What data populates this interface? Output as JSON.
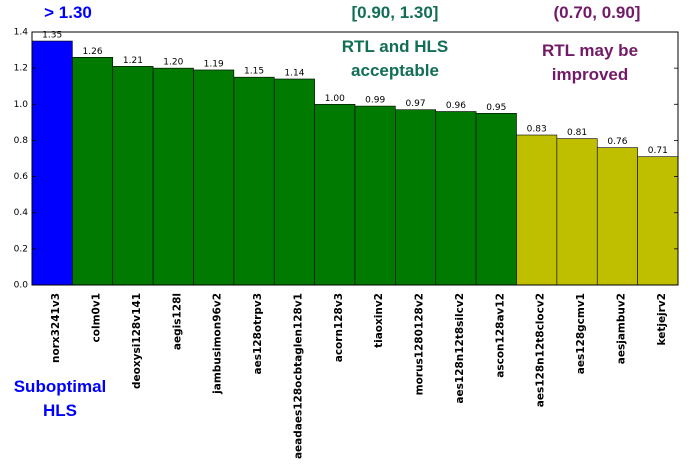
{
  "chart_data": {
    "type": "bar",
    "categories": [
      "norx3241v3",
      "colm0v1",
      "deoxysi128v141",
      "aegis128l",
      "jambusimon96v2",
      "aes128otrpv3",
      "aeadaes128ocbtaglen128v1",
      "acorn128v3",
      "tiaoxinv2",
      "morus1280128v2",
      "aes128n12t8silcv2",
      "ascon128av12",
      "aes128n12t8clocv2",
      "aes128gcmv1",
      "aesjambuv2",
      "ketjejrv2"
    ],
    "values": [
      1.35,
      1.26,
      1.21,
      1.2,
      1.19,
      1.15,
      1.14,
      1.0,
      0.99,
      0.97,
      0.96,
      0.95,
      0.83,
      0.81,
      0.76,
      0.71
    ],
    "value_labels": [
      "1.35",
      "1.26",
      "1.21",
      "1.20",
      "1.19",
      "1.15",
      "1.14",
      "1.00",
      "0.99",
      "0.97",
      "0.96",
      "0.95",
      "0.83",
      "0.81",
      "0.76",
      "0.71"
    ],
    "colors": [
      "#0000ff",
      "#007a00",
      "#007a00",
      "#007a00",
      "#007a00",
      "#007a00",
      "#007a00",
      "#007a00",
      "#007a00",
      "#007a00",
      "#007a00",
      "#007a00",
      "#bfbf00",
      "#bfbf00",
      "#bfbf00",
      "#bfbf00"
    ],
    "ylim": [
      0,
      1.4
    ],
    "yticks": [
      {
        "value": 0,
        "label": "0.0"
      },
      0.2,
      0.4,
      0.6,
      0.8,
      {
        "value": 1,
        "label": "1.0"
      },
      1.2,
      1.4
    ],
    "annotations": [
      {
        "lines": [
          "> 1.30"
        ],
        "color": "#0000ff"
      },
      {
        "lines": [
          "[0.90, 1.30]"
        ],
        "color": "#126e55"
      },
      {
        "lines": [
          "RTL and HLS",
          "acceptable"
        ],
        "color": "#126e55"
      },
      {
        "lines": [
          "(0.70, 0.90]"
        ],
        "color": "#731a66"
      },
      {
        "lines": [
          "RTL may be",
          "improved"
        ],
        "color": "#731a66"
      },
      {
        "lines": [
          "Suboptimal",
          "HLS"
        ],
        "color": "#0000ff"
      }
    ]
  }
}
